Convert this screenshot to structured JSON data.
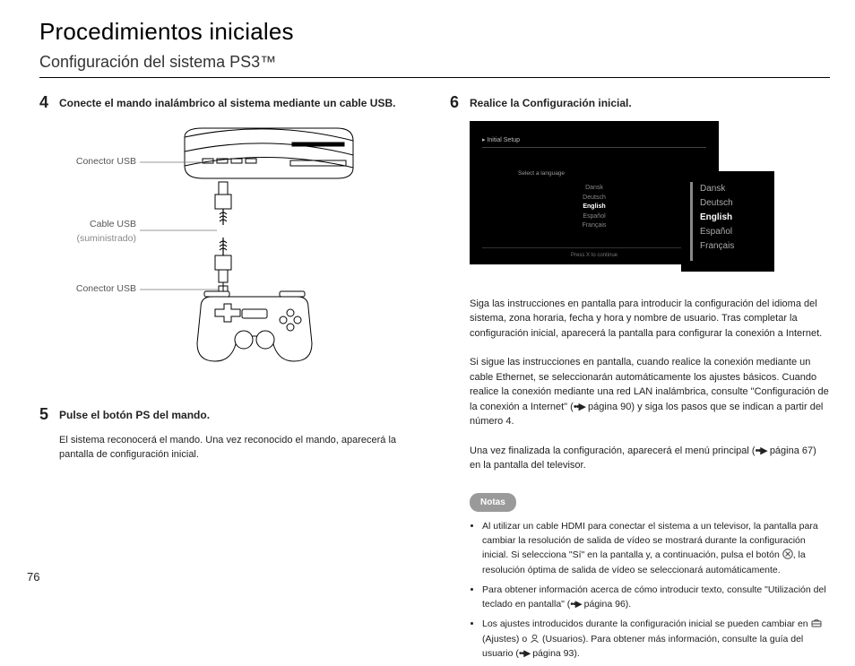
{
  "header": {
    "title": "Procedimientos iniciales",
    "subtitle": "Configuración del sistema PS3™"
  },
  "left": {
    "step4": {
      "num": "4",
      "head": "Conecte el mando inalámbrico al sistema mediante un cable USB.",
      "labels": {
        "usb_conn_top": "Conector USB",
        "cable": "Cable USB",
        "cable_sub": "(suministrado)",
        "usb_conn_bot": "Conector USB"
      }
    },
    "step5": {
      "num": "5",
      "head": "Pulse el botón PS del mando.",
      "body": "El sistema reconocerá el mando. Una vez reconocido el mando, aparecerá la pantalla de configuración inicial."
    }
  },
  "right": {
    "step6": {
      "num": "6",
      "head": "Realice la Configuración inicial.",
      "screenshot": {
        "header": "Initial Setup",
        "select_label": "Select a language",
        "langs_small": [
          "Dansk",
          "Deutsch",
          "English",
          "Español",
          "Français"
        ],
        "selected_small": "English",
        "press": "Press X to continue",
        "langs_inset": [
          "Dansk",
          "Deutsch",
          "English",
          "Español",
          "Français"
        ],
        "selected_inset": "English"
      },
      "para1": "Siga las instrucciones en pantalla para introducir la configuración del idioma del sistema, zona horaria, fecha y hora y nombre de usuario. Tras completar la configuración inicial, aparecerá la pantalla para configurar la conexión a Internet.",
      "para2_a": "Si sigue las instrucciones en pantalla, cuando realice la conexión mediante un cable Ethernet, se seleccionarán automáticamente los ajustes básicos. Cuando realice la conexión mediante una red LAN inalámbrica, consulte \"Configuración de la conexión a Internet\" (",
      "para2_ref": "página 90",
      "para2_b": ") y siga los pasos que se indican a partir del número 4.",
      "para3_a": "Una vez finalizada la configuración, aparecerá el menú principal (",
      "para3_ref": "página 67",
      "para3_b": ") en la pantalla del televisor."
    },
    "notes": {
      "badge": "Notas",
      "items": {
        "n1_a": "Al utilizar un cable HDMI para conectar el sistema a un televisor, la pantalla para cambiar la resolución de salida de vídeo se mostrará durante la configuración inicial. Si selecciona \"Sí\" en la pantalla y, a continuación, pulsa el botón ",
        "n1_b": ", la resolución óptima de salida de vídeo se seleccionará automáticamente.",
        "n2_a": "Para obtener información acerca de cómo introducir texto, consulte \"Utilización del teclado en pantalla\" (",
        "n2_ref": "página 96",
        "n2_b": ").",
        "n3_a": "Los ajustes introducidos durante la configuración inicial se pueden cambiar en ",
        "n3_mid1": " (Ajustes) o ",
        "n3_mid2": " (Usuarios). Para obtener más información, consulte la guía del usuario (",
        "n3_ref": "página 93",
        "n3_b": ")."
      }
    }
  },
  "page_number": "76",
  "glyphs": {
    "ref_arrow": "••▶"
  }
}
